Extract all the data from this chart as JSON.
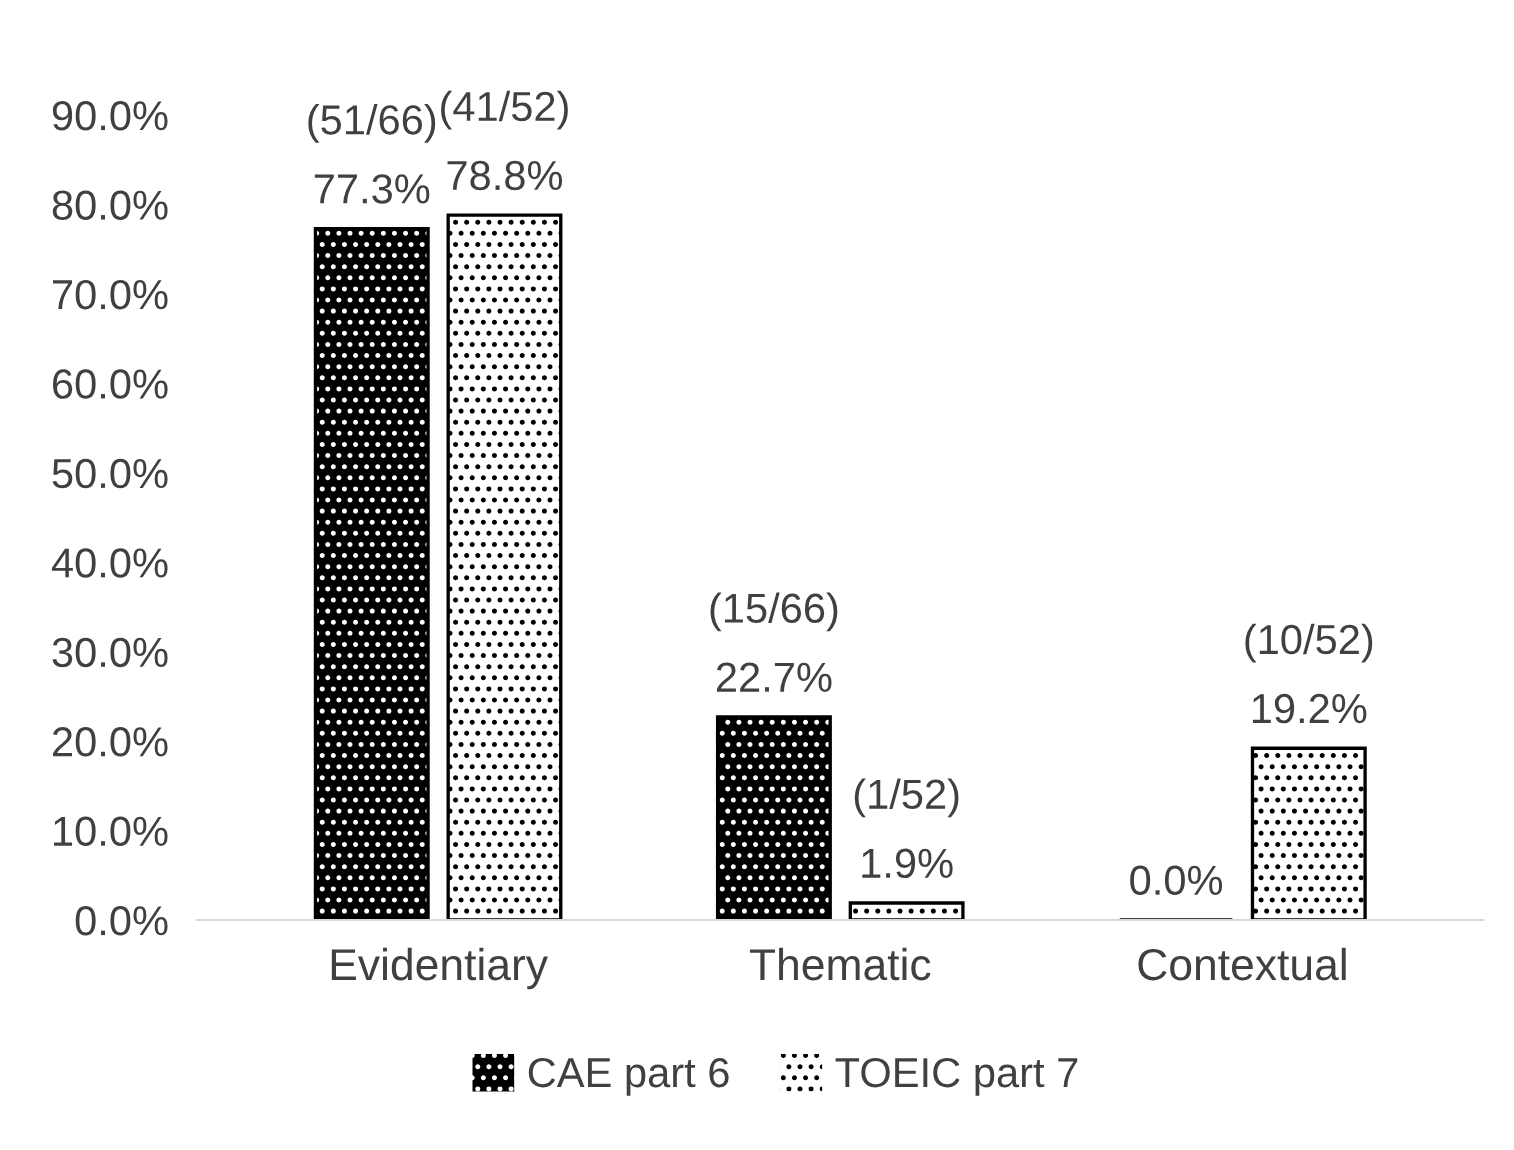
{
  "chart_data": {
    "type": "bar",
    "categories": [
      "Evidentiary",
      "Thematic",
      "Contextual"
    ],
    "series": [
      {
        "name": "CAE part 6",
        "color": "#000000",
        "values": [
          77.3,
          22.7,
          0.0
        ],
        "value_labels": [
          "(51/66)\n77.3%",
          "(15/66)\n22.7%",
          "0.0%"
        ]
      },
      {
        "name": "TOEIC part 7",
        "color": "#ffffff",
        "values": [
          78.8,
          1.9,
          19.2
        ],
        "value_labels": [
          "(41/52)\n78.8%",
          "(1/52)\n1.9%",
          "(10/52)\n19.2%"
        ]
      }
    ],
    "ylim": [
      0,
      90
    ],
    "yticks": [
      {
        "value": 0,
        "label": "0.0%"
      },
      {
        "value": 10,
        "label": "10.0%"
      },
      {
        "value": 20,
        "label": "20.0%"
      },
      {
        "value": 30,
        "label": "30.0%"
      },
      {
        "value": 40,
        "label": "40.0%"
      },
      {
        "value": 50,
        "label": "50.0%"
      },
      {
        "value": 60,
        "label": "60.0%"
      },
      {
        "value": 70,
        "label": "70.0%"
      },
      {
        "value": 80,
        "label": "80.0%"
      },
      {
        "value": 90,
        "label": "90.0%"
      }
    ],
    "grid": false,
    "legend": "bottom"
  }
}
